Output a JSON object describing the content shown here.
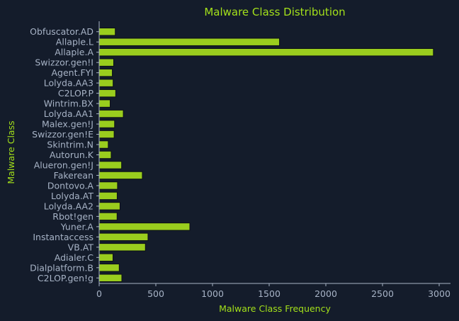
{
  "chart_data": {
    "type": "bar",
    "orientation": "horizontal",
    "title": "Malware Class Distribution",
    "xlabel": "Malware Class Frequency",
    "ylabel": "Malware Class",
    "categories": [
      "Obfuscator.AD",
      "Allaple.L",
      "Allaple.A",
      "Swizzor.gen!I",
      "Agent.FYI",
      "Lolyda.AA3",
      "C2LOP.P",
      "Wintrim.BX",
      "Lolyda.AA1",
      "Malex.gen!J",
      "Swizzor.gen!E",
      "Skintrim.N",
      "Autorun.K",
      "Alueron.gen!J",
      "Fakerean",
      "Dontovo.A",
      "Lolyda.AT",
      "Lolyda.AA2",
      "Rbot!gen",
      "Yuner.A",
      "Instantaccess",
      "VB.AT",
      "Adialer.C",
      "Dialplatform.B",
      "C2LOP.gen!g"
    ],
    "values": [
      142,
      1591,
      2949,
      128,
      116,
      123,
      146,
      97,
      213,
      136,
      132,
      80,
      106,
      198,
      381,
      162,
      159,
      184,
      158,
      800,
      431,
      408,
      122,
      177,
      200
    ],
    "xlim": [
      0,
      3100
    ],
    "xticks": [
      0,
      500,
      1000,
      1500,
      2000,
      2500,
      3000
    ],
    "grid": false,
    "colors": {
      "bar": "#9acd1e",
      "text": "#a3e01a",
      "ticks": "#a7b3c6",
      "background": "#141c2b"
    }
  }
}
